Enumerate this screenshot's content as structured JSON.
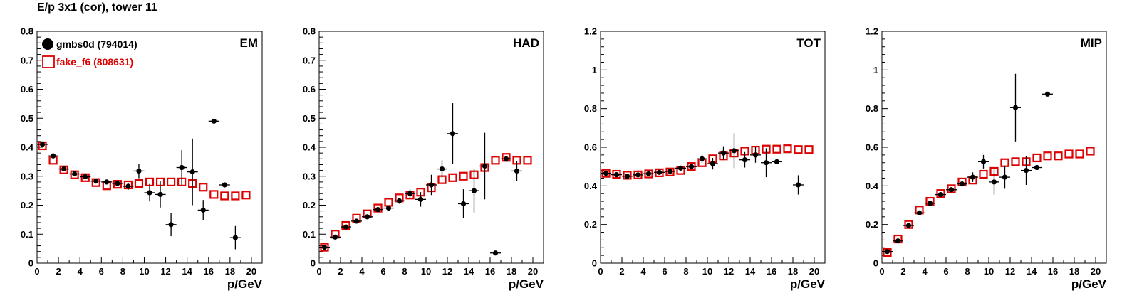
{
  "header": {
    "title": "E/p 3x1 (cor), tower 11"
  },
  "legend": {
    "placement": "top-left",
    "entries": [
      {
        "name": "gmbs0d (794014)",
        "marker": "filled-circle",
        "color": "#000000"
      },
      {
        "name": "fake_f6 (808631)",
        "marker": "open-square",
        "color": "#dd0000"
      }
    ]
  },
  "chart_data": [
    {
      "type": "scatter",
      "panel_label": "EM",
      "xlabel": "p/GeV",
      "xlim": [
        0,
        21
      ],
      "ylim": [
        0,
        0.8
      ],
      "x_ticks": [
        0,
        2,
        4,
        6,
        8,
        10,
        12,
        14,
        16,
        18,
        20
      ],
      "y_ticks": [
        0,
        0.1,
        0.2,
        0.3,
        0.4,
        0.5,
        0.6,
        0.7,
        0.8
      ],
      "y_tick_labels": [
        "0",
        "0.1",
        "0.2",
        "0.3",
        "0.4",
        "0.5",
        "0.6",
        "0.7",
        "0.8"
      ],
      "series": [
        {
          "name": "gmbs0d (794014)",
          "points": [
            [
              0.5,
              0.41,
              0.01
            ],
            [
              1.5,
              0.37,
              0.01
            ],
            [
              2.5,
              0.325,
              0.008
            ],
            [
              3.5,
              0.308,
              0.008
            ],
            [
              4.5,
              0.298,
              0.008
            ],
            [
              5.5,
              0.283,
              0.008
            ],
            [
              6.5,
              0.28,
              0.008
            ],
            [
              7.5,
              0.275,
              0.01
            ],
            [
              8.5,
              0.265,
              0.012
            ],
            [
              9.5,
              0.318,
              0.025
            ],
            [
              10.5,
              0.243,
              0.03
            ],
            [
              11.5,
              0.237,
              0.045
            ],
            [
              12.5,
              0.133,
              0.04
            ],
            [
              13.5,
              0.33,
              0.06
            ],
            [
              14.5,
              0.315,
              0.115
            ],
            [
              15.5,
              0.183,
              0.035
            ],
            [
              16.5,
              0.49,
              0.003
            ],
            [
              17.5,
              0.27,
              0.003
            ],
            [
              18.5,
              0.088,
              0.04
            ]
          ]
        },
        {
          "name": "fake_f6 (808631)",
          "points": [
            [
              0.5,
              0.405
            ],
            [
              1.5,
              0.355
            ],
            [
              2.5,
              0.322
            ],
            [
              3.5,
              0.305
            ],
            [
              4.5,
              0.295
            ],
            [
              5.5,
              0.278
            ],
            [
              6.5,
              0.267
            ],
            [
              7.5,
              0.272
            ],
            [
              8.5,
              0.27
            ],
            [
              9.5,
              0.275
            ],
            [
              10.5,
              0.28
            ],
            [
              11.5,
              0.28
            ],
            [
              12.5,
              0.28
            ],
            [
              13.5,
              0.28
            ],
            [
              14.5,
              0.275
            ],
            [
              15.5,
              0.262
            ],
            [
              16.5,
              0.237
            ],
            [
              17.5,
              0.232
            ],
            [
              18.5,
              0.232
            ],
            [
              19.5,
              0.235
            ]
          ]
        }
      ]
    },
    {
      "type": "scatter",
      "panel_label": "HAD",
      "xlabel": "p/GeV",
      "xlim": [
        0,
        21
      ],
      "ylim": [
        0,
        0.8
      ],
      "x_ticks": [
        0,
        2,
        4,
        6,
        8,
        10,
        12,
        14,
        16,
        18,
        20
      ],
      "y_ticks": [
        0,
        0.1,
        0.2,
        0.3,
        0.4,
        0.5,
        0.6,
        0.7,
        0.8
      ],
      "y_tick_labels": [
        "0",
        "0.1",
        "0.2",
        "0.3",
        "0.4",
        "0.5",
        "0.6",
        "0.7",
        "0.8"
      ],
      "series": [
        {
          "name": "gmbs0d (794014)",
          "points": [
            [
              0.5,
              0.055,
              0.005
            ],
            [
              1.5,
              0.09,
              0.005
            ],
            [
              2.5,
              0.125,
              0.005
            ],
            [
              3.5,
              0.145,
              0.005
            ],
            [
              4.5,
              0.16,
              0.006
            ],
            [
              5.5,
              0.185,
              0.007
            ],
            [
              6.5,
              0.19,
              0.008
            ],
            [
              7.5,
              0.215,
              0.01
            ],
            [
              8.5,
              0.24,
              0.015
            ],
            [
              9.5,
              0.22,
              0.025
            ],
            [
              10.5,
              0.27,
              0.035
            ],
            [
              11.5,
              0.325,
              0.03
            ],
            [
              12.5,
              0.447,
              0.105
            ],
            [
              13.5,
              0.205,
              0.05
            ],
            [
              14.5,
              0.25,
              0.075
            ],
            [
              15.5,
              0.335,
              0.115
            ],
            [
              16.5,
              0.035,
              0.003
            ],
            [
              17.5,
              0.36,
              0.01
            ],
            [
              18.5,
              0.318,
              0.035
            ]
          ]
        },
        {
          "name": "fake_f6 (808631)",
          "points": [
            [
              0.5,
              0.055
            ],
            [
              1.5,
              0.1
            ],
            [
              2.5,
              0.13
            ],
            [
              3.5,
              0.155
            ],
            [
              4.5,
              0.17
            ],
            [
              5.5,
              0.19
            ],
            [
              6.5,
              0.21
            ],
            [
              7.5,
              0.225
            ],
            [
              8.5,
              0.235
            ],
            [
              9.5,
              0.245
            ],
            [
              10.5,
              0.26
            ],
            [
              11.5,
              0.288
            ],
            [
              12.5,
              0.295
            ],
            [
              13.5,
              0.3
            ],
            [
              14.5,
              0.305
            ],
            [
              15.5,
              0.33
            ],
            [
              16.5,
              0.355
            ],
            [
              17.5,
              0.365
            ],
            [
              18.5,
              0.355
            ],
            [
              19.5,
              0.355
            ]
          ]
        }
      ]
    },
    {
      "type": "scatter",
      "panel_label": "TOT",
      "xlabel": "p/GeV",
      "xlim": [
        0,
        21
      ],
      "ylim": [
        0,
        1.2
      ],
      "x_ticks": [
        0,
        2,
        4,
        6,
        8,
        10,
        12,
        14,
        16,
        18,
        20
      ],
      "y_ticks": [
        0,
        0.2,
        0.4,
        0.6,
        0.8,
        1.0,
        1.2
      ],
      "y_tick_labels": [
        "0",
        "0.2",
        "0.4",
        "0.6",
        "0.8",
        "1",
        "1.2"
      ],
      "series": [
        {
          "name": "gmbs0d (794014)",
          "points": [
            [
              0.5,
              0.465,
              0.01
            ],
            [
              1.5,
              0.458,
              0.008
            ],
            [
              2.5,
              0.45,
              0.008
            ],
            [
              3.5,
              0.457,
              0.008
            ],
            [
              4.5,
              0.463,
              0.008
            ],
            [
              5.5,
              0.47,
              0.008
            ],
            [
              6.5,
              0.475,
              0.008
            ],
            [
              7.5,
              0.492,
              0.01
            ],
            [
              8.5,
              0.5,
              0.012
            ],
            [
              9.5,
              0.54,
              0.02
            ],
            [
              10.5,
              0.515,
              0.03
            ],
            [
              11.5,
              0.57,
              0.035
            ],
            [
              12.5,
              0.582,
              0.09
            ],
            [
              13.5,
              0.535,
              0.04
            ],
            [
              14.5,
              0.56,
              0.04
            ],
            [
              15.5,
              0.52,
              0.075
            ],
            [
              16.5,
              0.525,
              0.01
            ],
            [
              18.5,
              0.405,
              0.05
            ]
          ]
        },
        {
          "name": "fake_f6 (808631)",
          "points": [
            [
              0.5,
              0.465
            ],
            [
              1.5,
              0.46
            ],
            [
              2.5,
              0.455
            ],
            [
              3.5,
              0.457
            ],
            [
              4.5,
              0.462
            ],
            [
              5.5,
              0.468
            ],
            [
              6.5,
              0.472
            ],
            [
              7.5,
              0.48
            ],
            [
              8.5,
              0.5
            ],
            [
              9.5,
              0.52
            ],
            [
              10.5,
              0.54
            ],
            [
              11.5,
              0.555
            ],
            [
              12.5,
              0.57
            ],
            [
              13.5,
              0.58
            ],
            [
              14.5,
              0.585
            ],
            [
              15.5,
              0.59
            ],
            [
              16.5,
              0.59
            ],
            [
              17.5,
              0.592
            ],
            [
              18.5,
              0.588
            ],
            [
              19.5,
              0.588
            ]
          ]
        }
      ]
    },
    {
      "type": "scatter",
      "panel_label": "MIP",
      "xlabel": "p/GeV",
      "xlim": [
        0,
        21
      ],
      "ylim": [
        0,
        1.2
      ],
      "x_ticks": [
        0,
        2,
        4,
        6,
        8,
        10,
        12,
        14,
        16,
        18,
        20
      ],
      "y_ticks": [
        0,
        0.2,
        0.4,
        0.6,
        0.8,
        1.0,
        1.2
      ],
      "y_tick_labels": [
        "0",
        "0.2",
        "0.4",
        "0.6",
        "0.8",
        "1",
        "1.2"
      ],
      "series": [
        {
          "name": "gmbs0d (794014)",
          "points": [
            [
              0.5,
              0.06,
              0.005
            ],
            [
              1.5,
              0.115,
              0.005
            ],
            [
              2.5,
              0.195,
              0.006
            ],
            [
              3.5,
              0.26,
              0.007
            ],
            [
              4.5,
              0.31,
              0.008
            ],
            [
              5.5,
              0.355,
              0.01
            ],
            [
              6.5,
              0.38,
              0.012
            ],
            [
              7.5,
              0.41,
              0.015
            ],
            [
              8.5,
              0.445,
              0.025
            ],
            [
              9.5,
              0.525,
              0.035
            ],
            [
              10.5,
              0.42,
              0.065
            ],
            [
              11.5,
              0.445,
              0.06
            ],
            [
              12.5,
              0.805,
              0.175
            ],
            [
              13.5,
              0.48,
              0.075
            ],
            [
              14.5,
              0.495,
              0.01
            ],
            [
              15.5,
              0.875,
              0.005
            ]
          ]
        },
        {
          "name": "fake_f6 (808631)",
          "points": [
            [
              0.5,
              0.055
            ],
            [
              1.5,
              0.125
            ],
            [
              2.5,
              0.2
            ],
            [
              3.5,
              0.275
            ],
            [
              4.5,
              0.32
            ],
            [
              5.5,
              0.36
            ],
            [
              6.5,
              0.385
            ],
            [
              7.5,
              0.42
            ],
            [
              8.5,
              0.43
            ],
            [
              9.5,
              0.46
            ],
            [
              10.5,
              0.475
            ],
            [
              11.5,
              0.52
            ],
            [
              12.5,
              0.525
            ],
            [
              13.5,
              0.525
            ],
            [
              14.5,
              0.545
            ],
            [
              15.5,
              0.555
            ],
            [
              16.5,
              0.555
            ],
            [
              17.5,
              0.565
            ],
            [
              18.5,
              0.565
            ],
            [
              19.5,
              0.58
            ]
          ]
        }
      ]
    }
  ]
}
